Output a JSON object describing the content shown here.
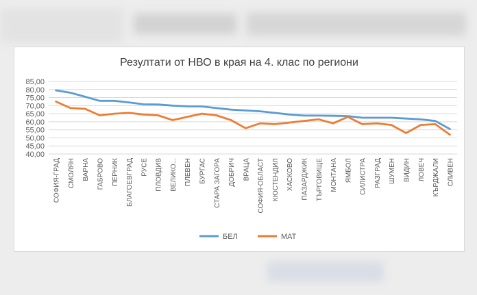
{
  "chart_data": {
    "type": "line",
    "title": "Резултати от НВО в края на 4. клас по региони",
    "xlabel": "",
    "ylabel": "",
    "ylim": [
      40,
      85
    ],
    "yticks": [
      "40,00",
      "45,00",
      "50,00",
      "55,00",
      "60,00",
      "65,00",
      "70,00",
      "75,00",
      "80,00",
      "85,00"
    ],
    "grid": true,
    "legend_position": "bottom",
    "categories": [
      "СОФИЯ-ГРАД",
      "СМОЛЯН",
      "ВАРНА",
      "ГАБРОВО",
      "ПЕРНИК",
      "БЛАГОЕВГРАД",
      "РУСЕ",
      "ПЛОВДИВ",
      "ВЕЛИКО...",
      "ПЛЕВЕН",
      "БУРГАС",
      "СТАРА ЗАГОРА",
      "ДОБРИЧ",
      "ВРАЦА",
      "СОФИЯ-ОБЛАСТ",
      "КЮСТЕНДИЛ",
      "ХАСКОВО",
      "ПАЗАРДЖИК",
      "ТЪРГОВИЩЕ",
      "МОНТАНА",
      "ЯМБОЛ",
      "СИЛИСТРА",
      "РАЗГРАД",
      "ШУМЕН",
      "ВИДИН",
      "ЛОВЕЧ",
      "КЪРДЖАЛИ",
      "СЛИВЕН"
    ],
    "series": [
      {
        "name": "БЕЛ",
        "color": "#5b9bd5",
        "values": [
          79.5,
          78,
          75.5,
          73,
          73,
          72,
          70.8,
          70.7,
          70,
          69.6,
          69.5,
          68.5,
          67.5,
          67,
          66.5,
          65.5,
          64.5,
          63.8,
          63.8,
          63.7,
          63.5,
          62.5,
          62.5,
          62.5,
          62,
          61.5,
          60.5,
          55.5
        ]
      },
      {
        "name": "МАТ",
        "color": "#ed7d31",
        "values": [
          72.5,
          68.5,
          68,
          64,
          65,
          65.5,
          64.5,
          64,
          61,
          63,
          65,
          64,
          61,
          56,
          59,
          58.5,
          59.5,
          60.5,
          61.5,
          59,
          63,
          58.5,
          59,
          58,
          53,
          58,
          58.5,
          52
        ]
      }
    ]
  }
}
